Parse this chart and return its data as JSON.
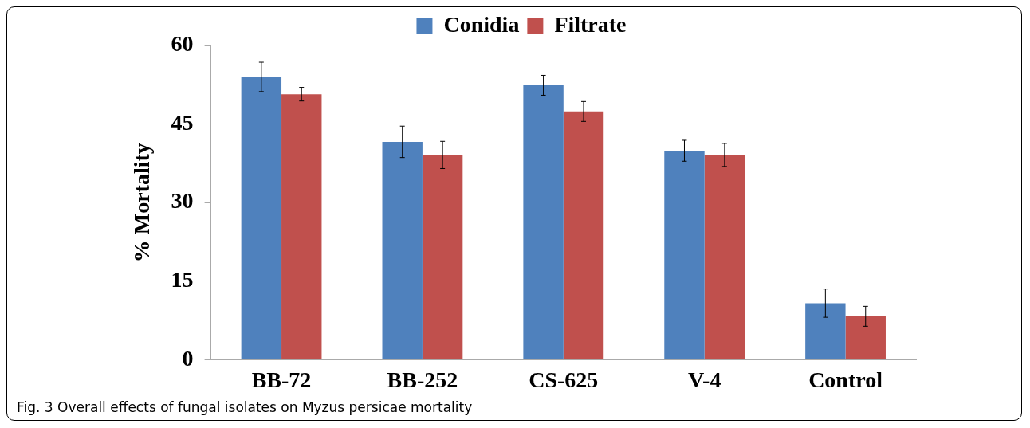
{
  "chart_data": {
    "type": "bar",
    "ylabel": "% Mortality",
    "categories": [
      "BB-72",
      "BB-252",
      "CS-625",
      "V-4",
      "Control"
    ],
    "series": [
      {
        "name": "Conidia",
        "color": "#4f81bd",
        "values": [
          54.0,
          41.6,
          52.4,
          39.9,
          10.8
        ],
        "errors": [
          2.8,
          3.0,
          1.9,
          2.0,
          2.7
        ]
      },
      {
        "name": "Filtrate",
        "color": "#c0504d",
        "values": [
          50.7,
          39.1,
          47.4,
          39.1,
          8.3
        ],
        "errors": [
          1.3,
          2.6,
          1.9,
          2.2,
          1.9
        ]
      }
    ],
    "ylim": [
      0,
      60
    ],
    "yticks": [
      0,
      15,
      30,
      45,
      60
    ],
    "grid": false,
    "legend": "top",
    "annotations": [
      "Fig. 3 Overall effects of fungal isolates on Myzus persicae mortality"
    ]
  }
}
